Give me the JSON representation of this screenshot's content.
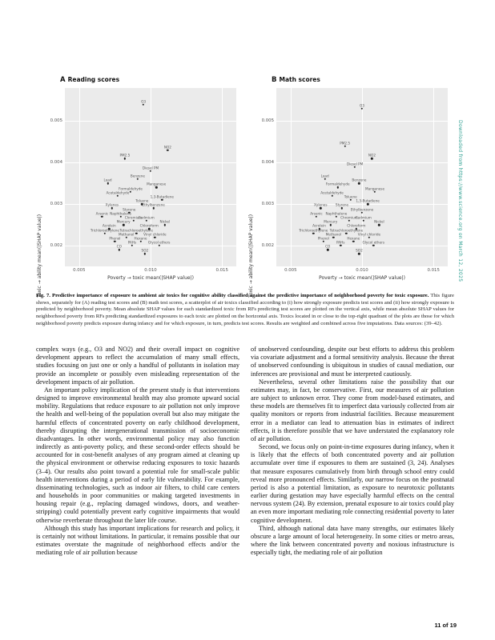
{
  "page": {
    "footer": "11 of 19",
    "watermark": "Downloaded from https://www.science.org on March 12, 2025"
  },
  "figure": {
    "panels": [
      {
        "tag": "A",
        "title": "Reading scores"
      },
      {
        "tag": "B",
        "title": "Math scores"
      }
    ],
    "x_label": "Poverty → toxic mean(|SHAP value|)",
    "y_label": "Toxic → ability mean(|SHAP value|)"
  },
  "chart_data": [
    {
      "type": "scatter",
      "panel": "A",
      "title": "Reading scores",
      "xlabel": "Poverty → toxic mean(|SHAP value|)",
      "ylabel": "Toxic → ability mean(|SHAP value|)",
      "xlim": [
        0.004,
        0.016
      ],
      "ylim": [
        0.0015,
        0.0058
      ],
      "grid": true,
      "xticks": [
        {
          "v": 0.005,
          "label": "0.005"
        },
        {
          "v": 0.01,
          "label": "0.010"
        },
        {
          "v": 0.015,
          "label": "0.015"
        }
      ],
      "yticks": [
        {
          "v": 0.002,
          "label": "0.002"
        },
        {
          "v": 0.003,
          "label": "0.003"
        },
        {
          "v": 0.004,
          "label": "0.004"
        },
        {
          "v": 0.005,
          "label": "0.005"
        }
      ],
      "points": [
        {
          "label": "O3",
          "x": 0.0095,
          "y": 0.0054
        },
        {
          "label": "NO2",
          "x": 0.0112,
          "y": 0.0043
        },
        {
          "label": "PM2.5",
          "x": 0.0082,
          "y": 0.0041
        },
        {
          "label": "Diesel PM",
          "x": 0.01,
          "y": 0.0038
        },
        {
          "label": "Benzene",
          "x": 0.0091,
          "y": 0.0036
        },
        {
          "label": "Lead",
          "x": 0.007,
          "y": 0.0035
        },
        {
          "label": "Manganese",
          "x": 0.0104,
          "y": 0.0034
        },
        {
          "label": "Formaldehyde",
          "x": 0.0086,
          "y": 0.0033
        },
        {
          "label": "Acetaldehyde",
          "x": 0.0077,
          "y": 0.0032
        },
        {
          "label": "1,3-Butadiene",
          "x": 0.0108,
          "y": 0.0031
        },
        {
          "label": "Toluene",
          "x": 0.0094,
          "y": 0.003
        },
        {
          "label": "Xylenes",
          "x": 0.0073,
          "y": 0.0029
        },
        {
          "label": "Ethylbenzene",
          "x": 0.0102,
          "y": 0.0029
        },
        {
          "label": "Styrene",
          "x": 0.0085,
          "y": 0.0028
        },
        {
          "label": "Naphthalene",
          "x": 0.0079,
          "y": 0.0027
        },
        {
          "label": "Arsenic",
          "x": 0.0066,
          "y": 0.0027
        },
        {
          "label": "Cadmium",
          "x": 0.0097,
          "y": 0.0026
        },
        {
          "label": "Chromium",
          "x": 0.0088,
          "y": 0.0026
        },
        {
          "label": "Nickel",
          "x": 0.011,
          "y": 0.0025
        },
        {
          "label": "Mercury",
          "x": 0.0081,
          "y": 0.0025
        },
        {
          "label": "Acrolein",
          "x": 0.0071,
          "y": 0.0024
        },
        {
          "label": "Chloroform",
          "x": 0.0099,
          "y": 0.0024
        },
        {
          "label": "Tetrachloroethylene",
          "x": 0.009,
          "y": 0.0023
        },
        {
          "label": "Trichloroethylene",
          "x": 0.0068,
          "y": 0.0023
        },
        {
          "label": "Vinyl chloride",
          "x": 0.0103,
          "y": 0.0022
        },
        {
          "label": "Methanol",
          "x": 0.0083,
          "y": 0.0022
        },
        {
          "label": "Hexane",
          "x": 0.0093,
          "y": 0.0021
        },
        {
          "label": "Phenol",
          "x": 0.0075,
          "y": 0.0021
        },
        {
          "label": "Glycol ethers",
          "x": 0.0106,
          "y": 0.002
        },
        {
          "label": "PAHs",
          "x": 0.0087,
          "y": 0.002
        },
        {
          "label": "CO",
          "x": 0.0078,
          "y": 0.0019
        },
        {
          "label": "SO2",
          "x": 0.0096,
          "y": 0.0018
        }
      ]
    },
    {
      "type": "scatter",
      "panel": "B",
      "title": "Math scores",
      "xlabel": "Poverty → toxic mean(|SHAP value|)",
      "ylabel": "Toxic → ability mean(|SHAP value|)",
      "xlim": [
        0.004,
        0.016
      ],
      "ylim": [
        0.0015,
        0.0058
      ],
      "grid": true,
      "xticks": [
        {
          "v": 0.005,
          "label": "0.005"
        },
        {
          "v": 0.01,
          "label": "0.010"
        },
        {
          "v": 0.015,
          "label": "0.015"
        }
      ],
      "yticks": [
        {
          "v": 0.002,
          "label": "0.002"
        },
        {
          "v": 0.003,
          "label": "0.003"
        },
        {
          "v": 0.004,
          "label": "0.004"
        },
        {
          "v": 0.005,
          "label": "0.005"
        }
      ],
      "points": [
        {
          "label": "O3",
          "x": 0.01,
          "y": 0.0053
        },
        {
          "label": "PM2.5",
          "x": 0.0088,
          "y": 0.0044
        },
        {
          "label": "NO2",
          "x": 0.0107,
          "y": 0.0041
        },
        {
          "label": "Diesel PM",
          "x": 0.0095,
          "y": 0.0039
        },
        {
          "label": "Lead",
          "x": 0.0074,
          "y": 0.0036
        },
        {
          "label": "Benzene",
          "x": 0.0098,
          "y": 0.0035
        },
        {
          "label": "Formaldehyde",
          "x": 0.0083,
          "y": 0.0034
        },
        {
          "label": "Manganese",
          "x": 0.0109,
          "y": 0.0033
        },
        {
          "label": "Acetaldehyde",
          "x": 0.0079,
          "y": 0.0032
        },
        {
          "label": "Toluene",
          "x": 0.0092,
          "y": 0.0031
        },
        {
          "label": "1,3-Butadiene",
          "x": 0.0104,
          "y": 0.003
        },
        {
          "label": "Styrene",
          "x": 0.0086,
          "y": 0.0029
        },
        {
          "label": "Xylenes",
          "x": 0.0071,
          "y": 0.0029
        },
        {
          "label": "Ethylbenzene",
          "x": 0.01,
          "y": 0.0028
        },
        {
          "label": "Arsenic",
          "x": 0.0068,
          "y": 0.0027
        },
        {
          "label": "Naphthalene",
          "x": 0.0082,
          "y": 0.0027
        },
        {
          "label": "Chromium",
          "x": 0.0091,
          "y": 0.0026
        },
        {
          "label": "Cadmium",
          "x": 0.0101,
          "y": 0.0026
        },
        {
          "label": "Mercury",
          "x": 0.0078,
          "y": 0.0025
        },
        {
          "label": "Nickel",
          "x": 0.0112,
          "y": 0.0025
        },
        {
          "label": "Chloroform",
          "x": 0.0096,
          "y": 0.0024
        },
        {
          "label": "Acrolein",
          "x": 0.007,
          "y": 0.0024
        },
        {
          "label": "Trichloroethylene",
          "x": 0.0066,
          "y": 0.0023
        },
        {
          "label": "Tetrachloroethylene",
          "x": 0.0089,
          "y": 0.0023
        },
        {
          "label": "Methanol",
          "x": 0.008,
          "y": 0.0022
        },
        {
          "label": "Vinyl chloride",
          "x": 0.0105,
          "y": 0.0022
        },
        {
          "label": "Phenol",
          "x": 0.0073,
          "y": 0.0021
        },
        {
          "label": "Hexane",
          "x": 0.0094,
          "y": 0.0021
        },
        {
          "label": "PAHs",
          "x": 0.0085,
          "y": 0.002
        },
        {
          "label": "Glycol ethers",
          "x": 0.0108,
          "y": 0.002
        },
        {
          "label": "CO",
          "x": 0.0076,
          "y": 0.0019
        },
        {
          "label": "SO2",
          "x": 0.0098,
          "y": 0.0018
        }
      ]
    }
  ],
  "caption": {
    "lead": "Fig. 7. Predictive importance of exposure to ambient air toxics for cognitive ability classified against the predictive importance of neighborhood poverty for toxic exposure.",
    "body": "This figure shows, separately for (A) reading test scores and (B) math test scores, a scatterplot of air toxics classified according to (i) how strongly exposure predicts test scores and (ii) how strongly exposure is predicted by neighborhood poverty. Mean absolute SHAP values for each standardized toxic from RFs predicting test scores are plotted on the vertical axis, while mean absolute SHAP values for neighborhood poverty from RFs predicting standardized exposures to each toxic are plotted on the horizontal axis. Toxics located in or close to the top-right quadrant of the plots are those for which neighborhood poverty predicts exposure during infancy and for which exposure, in turn, predicts test scores. Results are weighted and combined across five imputations. Data sources: (39–42)."
  },
  "body": {
    "left": [
      "complex ways (e.g., O3 and NO2) and their overall impact on cognitive development appears to reflect the accumulation of many small effects, studies focusing on just one or only a handful of pollutants in isolation may provide an incomplete or possibly even misleading representation of the development impacts of air pollution.",
      "An important policy implication of the present study is that interventions designed to improve environmental health may also promote upward social mobility. Regulations that reduce exposure to air pollution not only improve the health and well-being of the population overall but also may mitigate the harmful effects of concentrated poverty on early childhood development, thereby disrupting the intergenerational transmission of socioeconomic disadvantages. In other words, environmental policy may also function indirectly as anti-poverty policy, and these second-order effects should be accounted for in cost-benefit analyses of any program aimed at cleaning up the physical environment or otherwise reducing exposures to toxic hazards (3–4). Our results also point toward a potential role for small-scale public health interventions during a period of early life vulnerability. For example, disseminating technologies, such as indoor air filters, to child care centers and households in poor communities or making targeted investments in housing repair (e.g., replacing damaged windows, doors, and weather-stripping) could potentially prevent early cognitive impairments that would otherwise reverberate throughout the later life course.",
      "Although this study has important implications for research and policy, it is certainly not without limitations. In particular, it remains possible that our estimates overstate the magnitude of neighborhood effects and/or the mediating role of air pollution because"
    ],
    "right": [
      "of unobserved confounding, despite our best efforts to address this problem via covariate adjustment and a formal sensitivity analysis. Because the threat of unobserved confounding is ubiquitous in studies of causal mediation, our inferences are provisional and must be interpreted cautiously.",
      "Nevertheless, several other limitations raise the possibility that our estimates may, in fact, be conservative. First, our measures of air pollution are subject to unknown error. They come from model-based estimates, and these models are themselves fit to imperfect data variously collected from air quality monitors or reports from industrial facilities. Because measurement error in a mediator can lead to attenuation bias in estimates of indirect effects, it is therefore possible that we have understated the explanatory role of air pollution.",
      "Second, we focus only on point-in-time exposures during infancy, when it is likely that the effects of both concentrated poverty and air pollution accumulate over time if exposures to them are sustained (3, 24). Analyses that measure exposures cumulatively from birth through school entry could reveal more pronounced effects. Similarly, our narrow focus on the postnatal period is also a potential limitation, as exposure to neurotoxic pollutants earlier during gestation may have especially harmful effects on the central nervous system (24). By extension, prenatal exposure to air toxics could play an even more important mediating role connecting residential poverty to later cognitive development.",
      "Third, although national data have many strengths, our estimates likely obscure a large amount of local heterogeneity. In some cities or metro areas, where the link between concentrated poverty and noxious infrastructure is especially tight, the mediating role of air pollution"
    ]
  }
}
